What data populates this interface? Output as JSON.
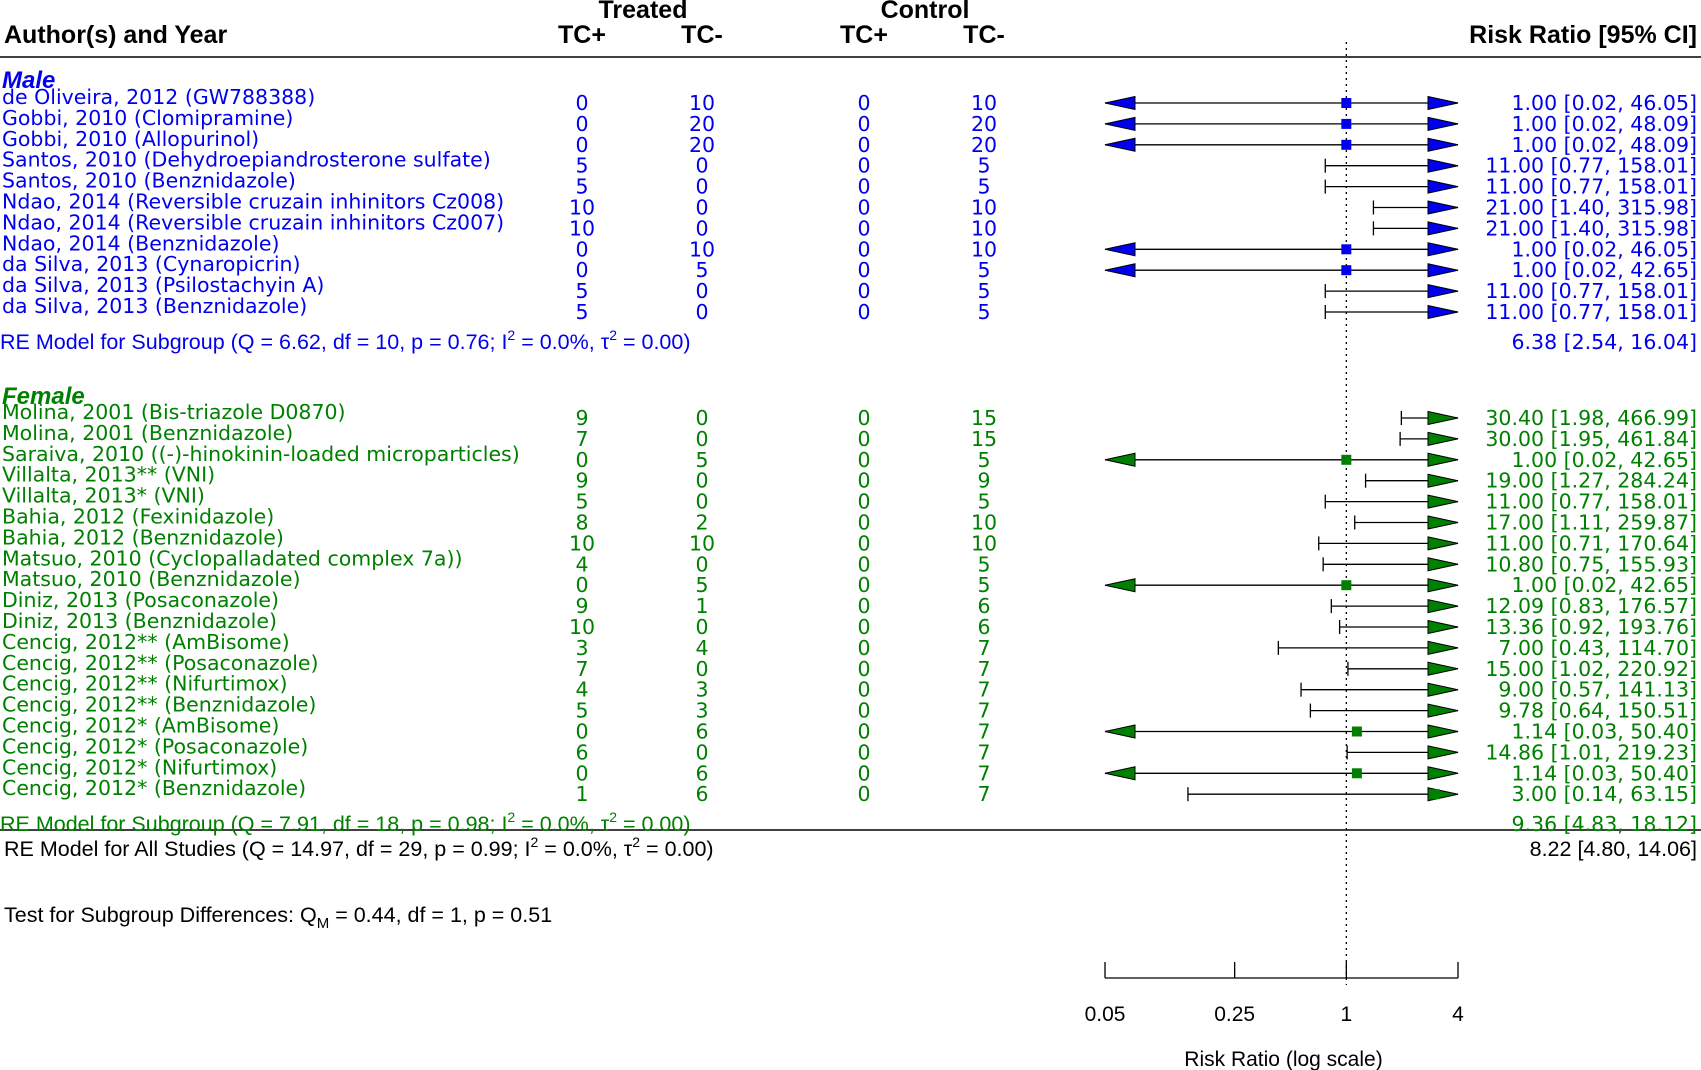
{
  "headers": {
    "author": "Author(s) and Year",
    "treated": "Treated",
    "control": "Control",
    "tc_plus": "TC+",
    "tc_minus": "TC-",
    "rr": "Risk Ratio [95% CI]"
  },
  "colors": {
    "male": "#0000ee",
    "female": "#008000",
    "black": "#000000"
  },
  "chart_data": {
    "type": "forest",
    "xlabel": "Risk Ratio (log scale)",
    "scale": "log",
    "xlim": [
      0.05,
      4
    ],
    "ticks": [
      {
        "value": 0.05,
        "label": "0.05"
      },
      {
        "value": 0.25,
        "label": "0.25"
      },
      {
        "value": 1,
        "label": "1"
      },
      {
        "value": 4,
        "label": "4"
      }
    ],
    "reference_line": 1,
    "groups": [
      {
        "name": "Male",
        "color": "#0000ee",
        "studies": [
          {
            "label": "de Oliveira, 2012 (GW788388)",
            "t_pos": "0",
            "t_neg": "10",
            "c_pos": "0",
            "c_neg": "10",
            "rr": 1.0,
            "lo": 0.02,
            "hi": 46.05,
            "ci_text": "1.00 [0.02,  46.05]"
          },
          {
            "label": "Gobbi, 2010 (Clomipramine)",
            "t_pos": "0",
            "t_neg": "20",
            "c_pos": "0",
            "c_neg": "20",
            "rr": 1.0,
            "lo": 0.02,
            "hi": 48.09,
            "ci_text": "1.00 [0.02,  48.09]"
          },
          {
            "label": "Gobbi, 2010 (Allopurinol)",
            "t_pos": "0",
            "t_neg": "20",
            "c_pos": "0",
            "c_neg": "20",
            "rr": 1.0,
            "lo": 0.02,
            "hi": 48.09,
            "ci_text": "1.00 [0.02,  48.09]"
          },
          {
            "label": "Santos, 2010 (Dehydroepiandrosterone sulfate)",
            "t_pos": "5",
            "t_neg": "0",
            "c_pos": "0",
            "c_neg": "5",
            "rr": 11.0,
            "lo": 0.77,
            "hi": 158.01,
            "ci_text": "11.00 [0.77, 158.01]"
          },
          {
            "label": "Santos, 2010 (Benznidazole)",
            "t_pos": "5",
            "t_neg": "0",
            "c_pos": "0",
            "c_neg": "5",
            "rr": 11.0,
            "lo": 0.77,
            "hi": 158.01,
            "ci_text": "11.00 [0.77, 158.01]"
          },
          {
            "label": "Ndao, 2014 (Reversible cruzain inhinitors Cz008)",
            "t_pos": "10",
            "t_neg": "0",
            "c_pos": "0",
            "c_neg": "10",
            "rr": 21.0,
            "lo": 1.4,
            "hi": 315.98,
            "ci_text": "21.00 [1.40, 315.98]"
          },
          {
            "label": "Ndao, 2014 (Reversible cruzain inhinitors Cz007)",
            "t_pos": "10",
            "t_neg": "0",
            "c_pos": "0",
            "c_neg": "10",
            "rr": 21.0,
            "lo": 1.4,
            "hi": 315.98,
            "ci_text": "21.00 [1.40, 315.98]"
          },
          {
            "label": "Ndao, 2014 (Benznidazole)",
            "t_pos": "0",
            "t_neg": "10",
            "c_pos": "0",
            "c_neg": "10",
            "rr": 1.0,
            "lo": 0.02,
            "hi": 46.05,
            "ci_text": "1.00 [0.02,  46.05]"
          },
          {
            "label": "da Silva, 2013 (Cynaropicrin)",
            "t_pos": "0",
            "t_neg": "5",
            "c_pos": "0",
            "c_neg": "5",
            "rr": 1.0,
            "lo": 0.02,
            "hi": 42.65,
            "ci_text": "1.00 [0.02,  42.65]"
          },
          {
            "label": "da Silva, 2013 (Psilostachyin A)",
            "t_pos": "5",
            "t_neg": "0",
            "c_pos": "0",
            "c_neg": "5",
            "rr": 11.0,
            "lo": 0.77,
            "hi": 158.01,
            "ci_text": "11.00 [0.77, 158.01]"
          },
          {
            "label": "da Silva, 2013 (Benznidazole)",
            "t_pos": "5",
            "t_neg": "0",
            "c_pos": "0",
            "c_neg": "5",
            "rr": 11.0,
            "lo": 0.77,
            "hi": 158.01,
            "ci_text": "11.00 [0.77, 158.01]"
          }
        ],
        "summary": {
          "q": "6.62",
          "df": "10",
          "p": "0.76",
          "i2": "0.0%",
          "tau2": "0.00",
          "rr": 6.38,
          "lo": 2.54,
          "hi": 16.04,
          "ci_text": "6.38 [2.54,  16.04]"
        }
      },
      {
        "name": "Female",
        "color": "#008000",
        "studies": [
          {
            "label": "Molina, 2001 (Bis-triazole D0870)",
            "t_pos": "9",
            "t_neg": "0",
            "c_pos": "0",
            "c_neg": "15",
            "rr": 30.4,
            "lo": 1.98,
            "hi": 466.99,
            "ci_text": "30.40 [1.98, 466.99]"
          },
          {
            "label": "Molina, 2001 (Benznidazole)",
            "t_pos": "7",
            "t_neg": "0",
            "c_pos": "0",
            "c_neg": "15",
            "rr": 30.0,
            "lo": 1.95,
            "hi": 461.84,
            "ci_text": "30.00 [1.95, 461.84]"
          },
          {
            "label": "Saraiva, 2010 ((-)-hinokinin-loaded microparticles)",
            "t_pos": "0",
            "t_neg": "5",
            "c_pos": "0",
            "c_neg": "5",
            "rr": 1.0,
            "lo": 0.02,
            "hi": 42.65,
            "ci_text": "1.00 [0.02,  42.65]"
          },
          {
            "label": "Villalta, 2013** (VNI)",
            "t_pos": "9",
            "t_neg": "0",
            "c_pos": "0",
            "c_neg": "9",
            "rr": 19.0,
            "lo": 1.27,
            "hi": 284.24,
            "ci_text": "19.00 [1.27, 284.24]"
          },
          {
            "label": "Villalta, 2013* (VNI)",
            "t_pos": "5",
            "t_neg": "0",
            "c_pos": "0",
            "c_neg": "5",
            "rr": 11.0,
            "lo": 0.77,
            "hi": 158.01,
            "ci_text": "11.00 [0.77, 158.01]"
          },
          {
            "label": "Bahia, 2012 (Fexinidazole)",
            "t_pos": "8",
            "t_neg": "2",
            "c_pos": "0",
            "c_neg": "10",
            "rr": 17.0,
            "lo": 1.11,
            "hi": 259.87,
            "ci_text": "17.00 [1.11, 259.87]"
          },
          {
            "label": "Bahia, 2012 (Benznidazole)",
            "t_pos": "10",
            "t_neg": "10",
            "c_pos": "0",
            "c_neg": "10",
            "rr": 11.0,
            "lo": 0.71,
            "hi": 170.64,
            "ci_text": "11.00 [0.71, 170.64]"
          },
          {
            "label": "Matsuo, 2010 (Cyclopalladated complex 7a))",
            "t_pos": "4",
            "t_neg": "0",
            "c_pos": "0",
            "c_neg": "5",
            "rr": 10.8,
            "lo": 0.75,
            "hi": 155.93,
            "ci_text": "10.80 [0.75, 155.93]"
          },
          {
            "label": "Matsuo, 2010 (Benznidazole)",
            "t_pos": "0",
            "t_neg": "5",
            "c_pos": "0",
            "c_neg": "5",
            "rr": 1.0,
            "lo": 0.02,
            "hi": 42.65,
            "ci_text": "1.00 [0.02,  42.65]"
          },
          {
            "label": "Diniz, 2013 (Posaconazole)",
            "t_pos": "9",
            "t_neg": "1",
            "c_pos": "0",
            "c_neg": "6",
            "rr": 12.09,
            "lo": 0.83,
            "hi": 176.57,
            "ci_text": "12.09 [0.83, 176.57]"
          },
          {
            "label": "Diniz, 2013 (Benznidazole)",
            "t_pos": "10",
            "t_neg": "0",
            "c_pos": "0",
            "c_neg": "6",
            "rr": 13.36,
            "lo": 0.92,
            "hi": 193.76,
            "ci_text": "13.36 [0.92, 193.76]"
          },
          {
            "label": "Cencig, 2012** (AmBisome)",
            "t_pos": "3",
            "t_neg": "4",
            "c_pos": "0",
            "c_neg": "7",
            "rr": 7.0,
            "lo": 0.43,
            "hi": 114.7,
            "ci_text": "7.00 [0.43, 114.70]"
          },
          {
            "label": "Cencig, 2012** (Posaconazole)",
            "t_pos": "7",
            "t_neg": "0",
            "c_pos": "0",
            "c_neg": "7",
            "rr": 15.0,
            "lo": 1.02,
            "hi": 220.92,
            "ci_text": "15.00 [1.02, 220.92]"
          },
          {
            "label": "Cencig, 2012** (Nifurtimox)",
            "t_pos": "4",
            "t_neg": "3",
            "c_pos": "0",
            "c_neg": "7",
            "rr": 9.0,
            "lo": 0.57,
            "hi": 141.13,
            "ci_text": "9.00 [0.57, 141.13]"
          },
          {
            "label": "Cencig, 2012** (Benznidazole)",
            "t_pos": "5",
            "t_neg": "3",
            "c_pos": "0",
            "c_neg": "7",
            "rr": 9.78,
            "lo": 0.64,
            "hi": 150.51,
            "ci_text": "9.78 [0.64, 150.51]"
          },
          {
            "label": "Cencig, 2012* (AmBisome)",
            "t_pos": "0",
            "t_neg": "6",
            "c_pos": "0",
            "c_neg": "7",
            "rr": 1.14,
            "lo": 0.03,
            "hi": 50.4,
            "ci_text": "1.14 [0.03,  50.40]"
          },
          {
            "label": "Cencig, 2012* (Posaconazole)",
            "t_pos": "6",
            "t_neg": "0",
            "c_pos": "0",
            "c_neg": "7",
            "rr": 14.86,
            "lo": 1.01,
            "hi": 219.23,
            "ci_text": "14.86 [1.01, 219.23]"
          },
          {
            "label": "Cencig, 2012* (Nifurtimox)",
            "t_pos": "0",
            "t_neg": "6",
            "c_pos": "0",
            "c_neg": "7",
            "rr": 1.14,
            "lo": 0.03,
            "hi": 50.4,
            "ci_text": "1.14 [0.03,  50.40]"
          },
          {
            "label": "Cencig, 2012* (Benznidazole)",
            "t_pos": "1",
            "t_neg": "6",
            "c_pos": "0",
            "c_neg": "7",
            "rr": 3.0,
            "lo": 0.14,
            "hi": 63.15,
            "ci_text": "3.00 [0.14,  63.15]"
          }
        ],
        "summary": {
          "q": "7.91",
          "df": "18",
          "p": "0.98",
          "i2": "0.0%",
          "tau2": "0.00",
          "rr": 9.36,
          "lo": 4.83,
          "hi": 18.12,
          "ci_text": "9.36 [4.83,  18.12]"
        }
      }
    ],
    "overall": {
      "q": "14.97",
      "df": "29",
      "p": "0.99",
      "i2": "0.0%",
      "tau2": "0.00",
      "rr": 8.22,
      "lo": 4.8,
      "hi": 14.06,
      "ci_text": "8.22 [4.80,  14.06]"
    },
    "subgroup_test": {
      "qm": "0.44",
      "df": "1",
      "p": "0.51"
    }
  }
}
